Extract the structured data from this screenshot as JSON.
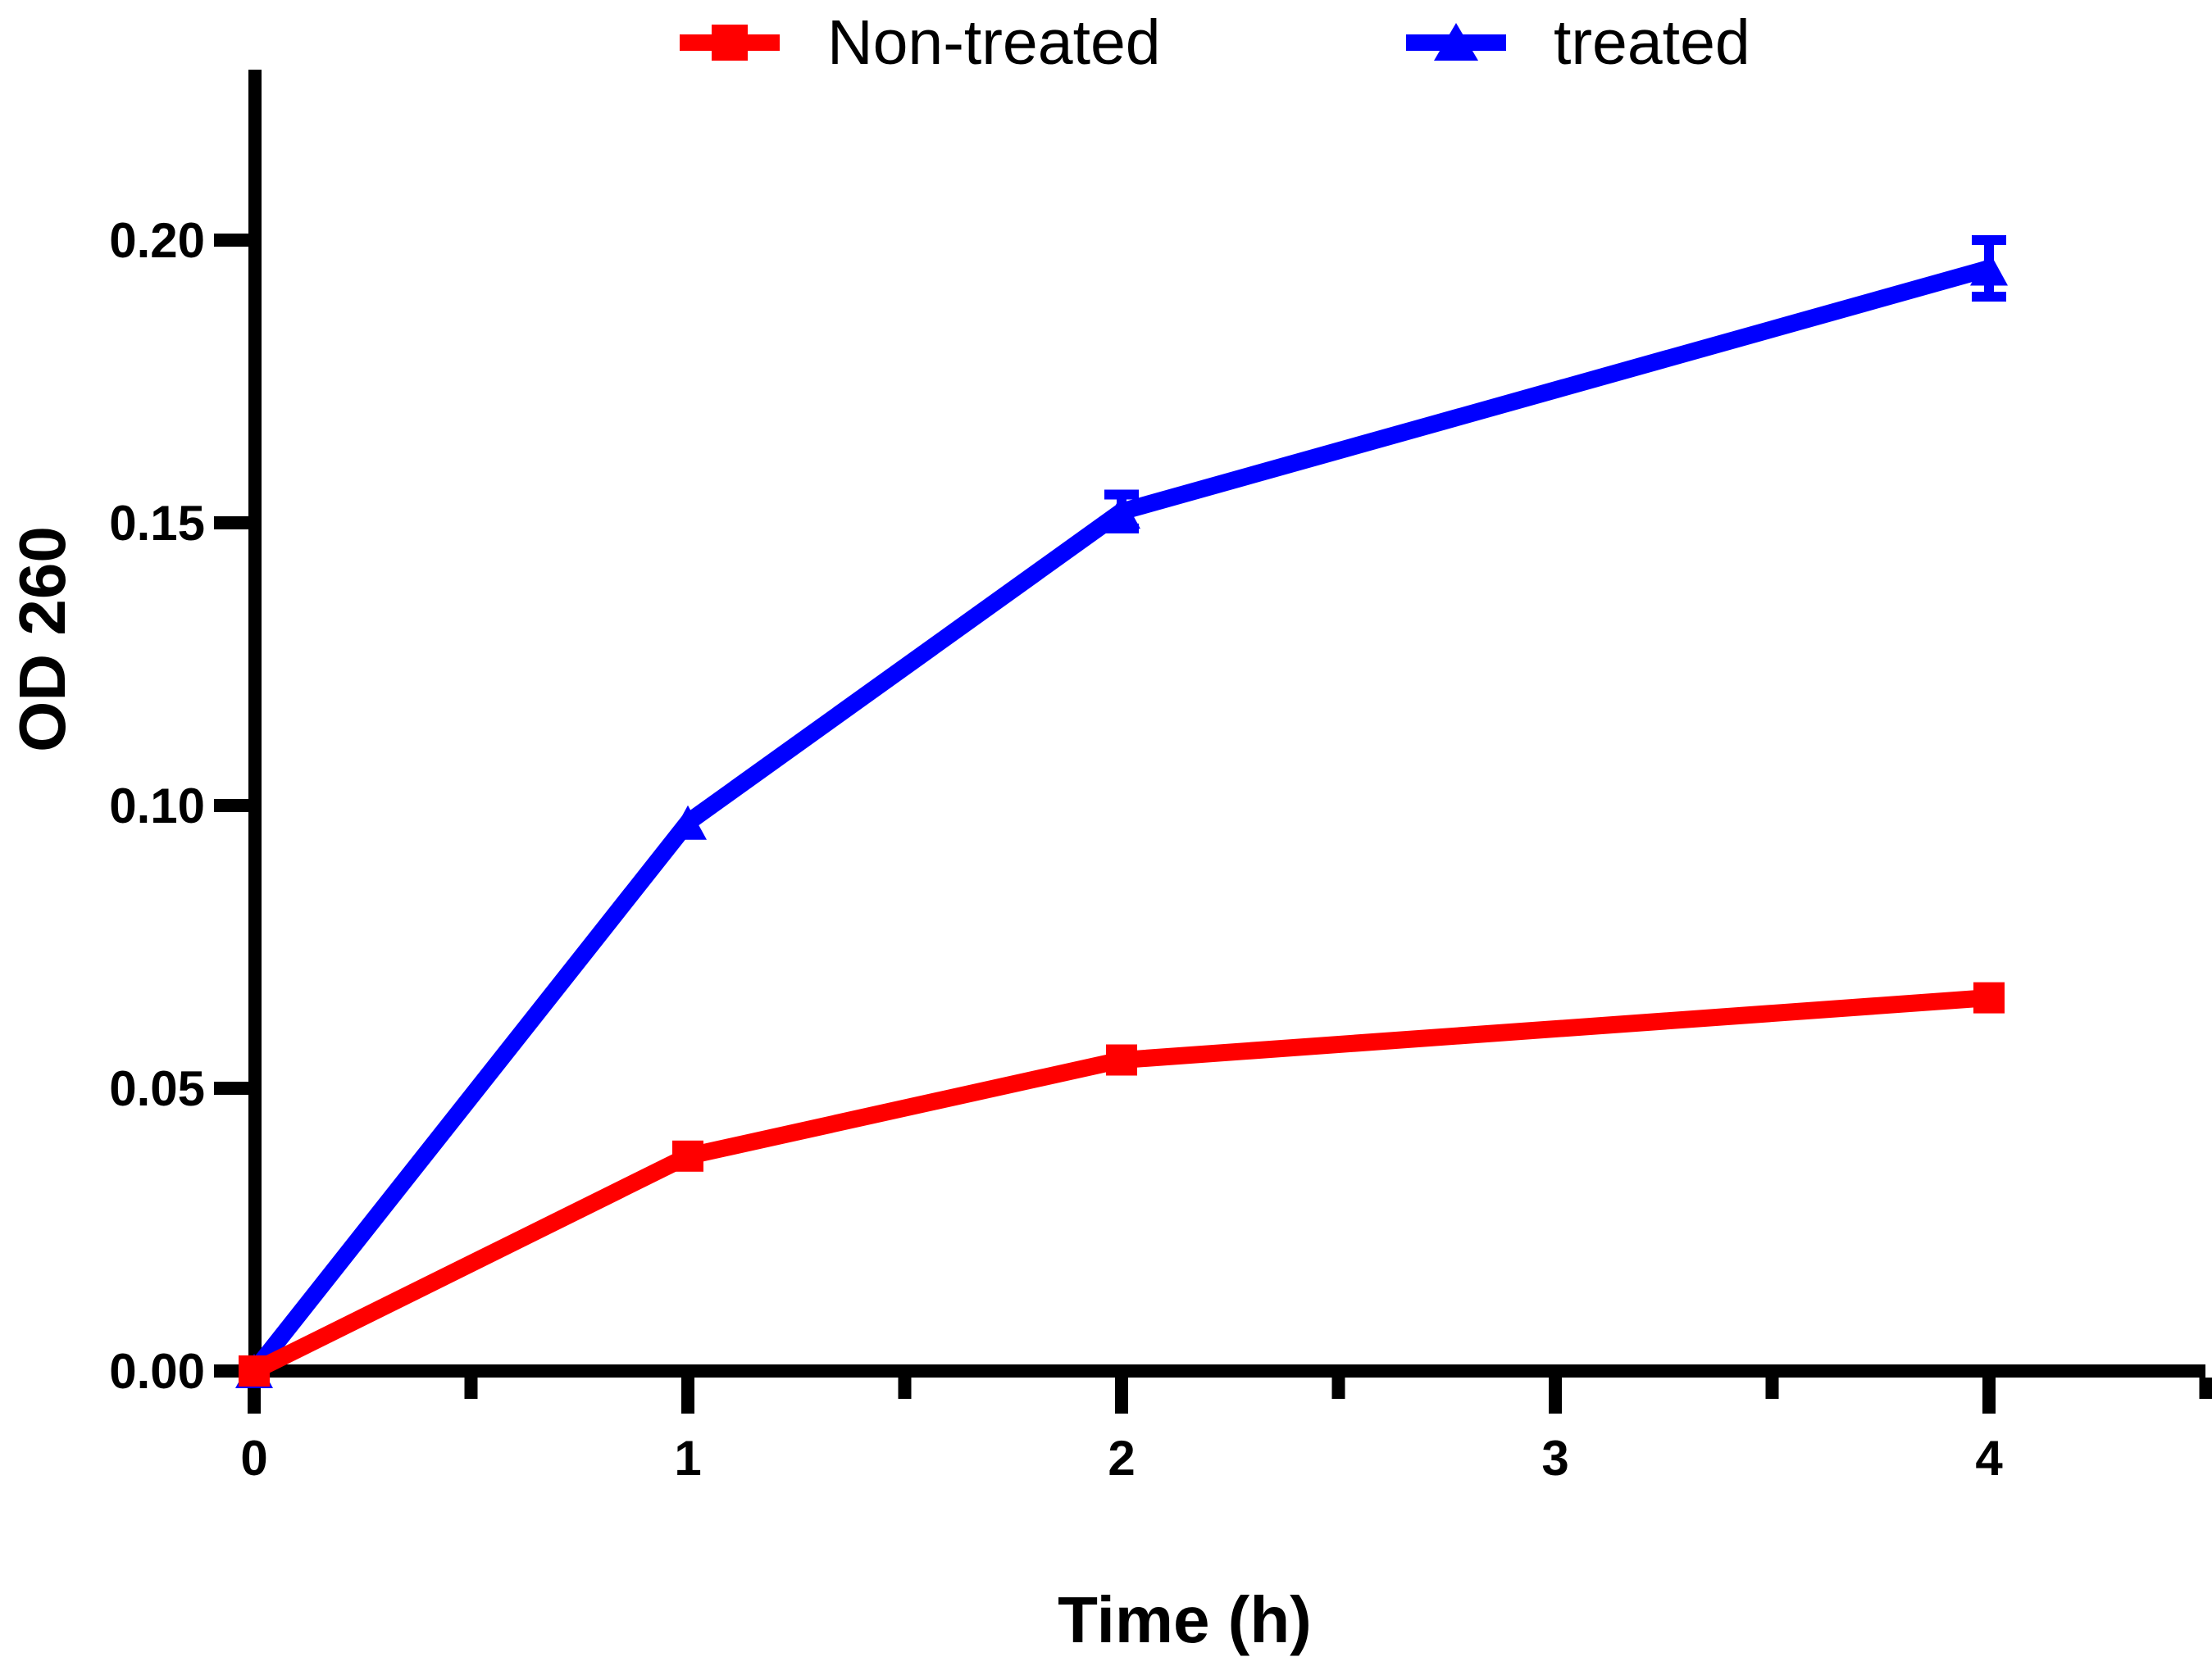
{
  "figure": {
    "background": "#ffffff",
    "axis_color": "#000000"
  },
  "legend": {
    "items": [
      {
        "label": "Non-treated",
        "color": "#ff0000",
        "marker": "square"
      },
      {
        "label": "treated",
        "color": "#0000ff",
        "marker": "triangle-up"
      }
    ]
  },
  "chart_data": {
    "type": "line",
    "title": "",
    "xlabel": "Time (h)",
    "ylabel": "OD 260",
    "x": [
      0,
      1,
      2,
      4
    ],
    "series": [
      {
        "name": "Non-treated",
        "color": "#ff0000",
        "marker": "square",
        "values": [
          0.0,
          0.038,
          0.055,
          0.066
        ],
        "errors": [
          0,
          0,
          0,
          0
        ]
      },
      {
        "name": "treated",
        "color": "#0000ff",
        "marker": "triangle-up",
        "values": [
          0.0,
          0.097,
          0.152,
          0.195
        ],
        "errors": [
          0,
          0,
          0.003,
          0.005
        ]
      }
    ],
    "xtick_values": [
      0,
      1,
      2,
      3,
      4
    ],
    "xtick_labels": [
      "0",
      "1",
      "2",
      "3",
      "4"
    ],
    "xminor_ticks": [
      0.5,
      1.5,
      2.5,
      3.5,
      4.5
    ],
    "ytick_values": [
      0,
      0.05,
      0.1,
      0.15,
      0.2
    ],
    "ytick_labels": [
      "0.00",
      "0.05",
      "0.10",
      "0.15",
      "0.20"
    ],
    "xlim": [
      0,
      4.5
    ],
    "ylim": [
      0,
      0.23
    ],
    "grid": false,
    "legend_position": "top-center"
  }
}
